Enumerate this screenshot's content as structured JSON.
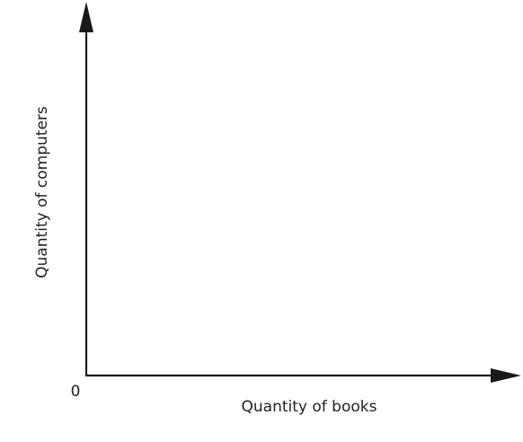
{
  "chart_data": {
    "type": "line",
    "title": "",
    "xlabel": "Quantity of books",
    "ylabel": "Quantity of computers",
    "origin_label": "0",
    "series": [],
    "grid": false,
    "legend": "none"
  },
  "colors": {
    "axis": "#1a1a1a",
    "text": "#222222",
    "background": "#ffffff"
  }
}
